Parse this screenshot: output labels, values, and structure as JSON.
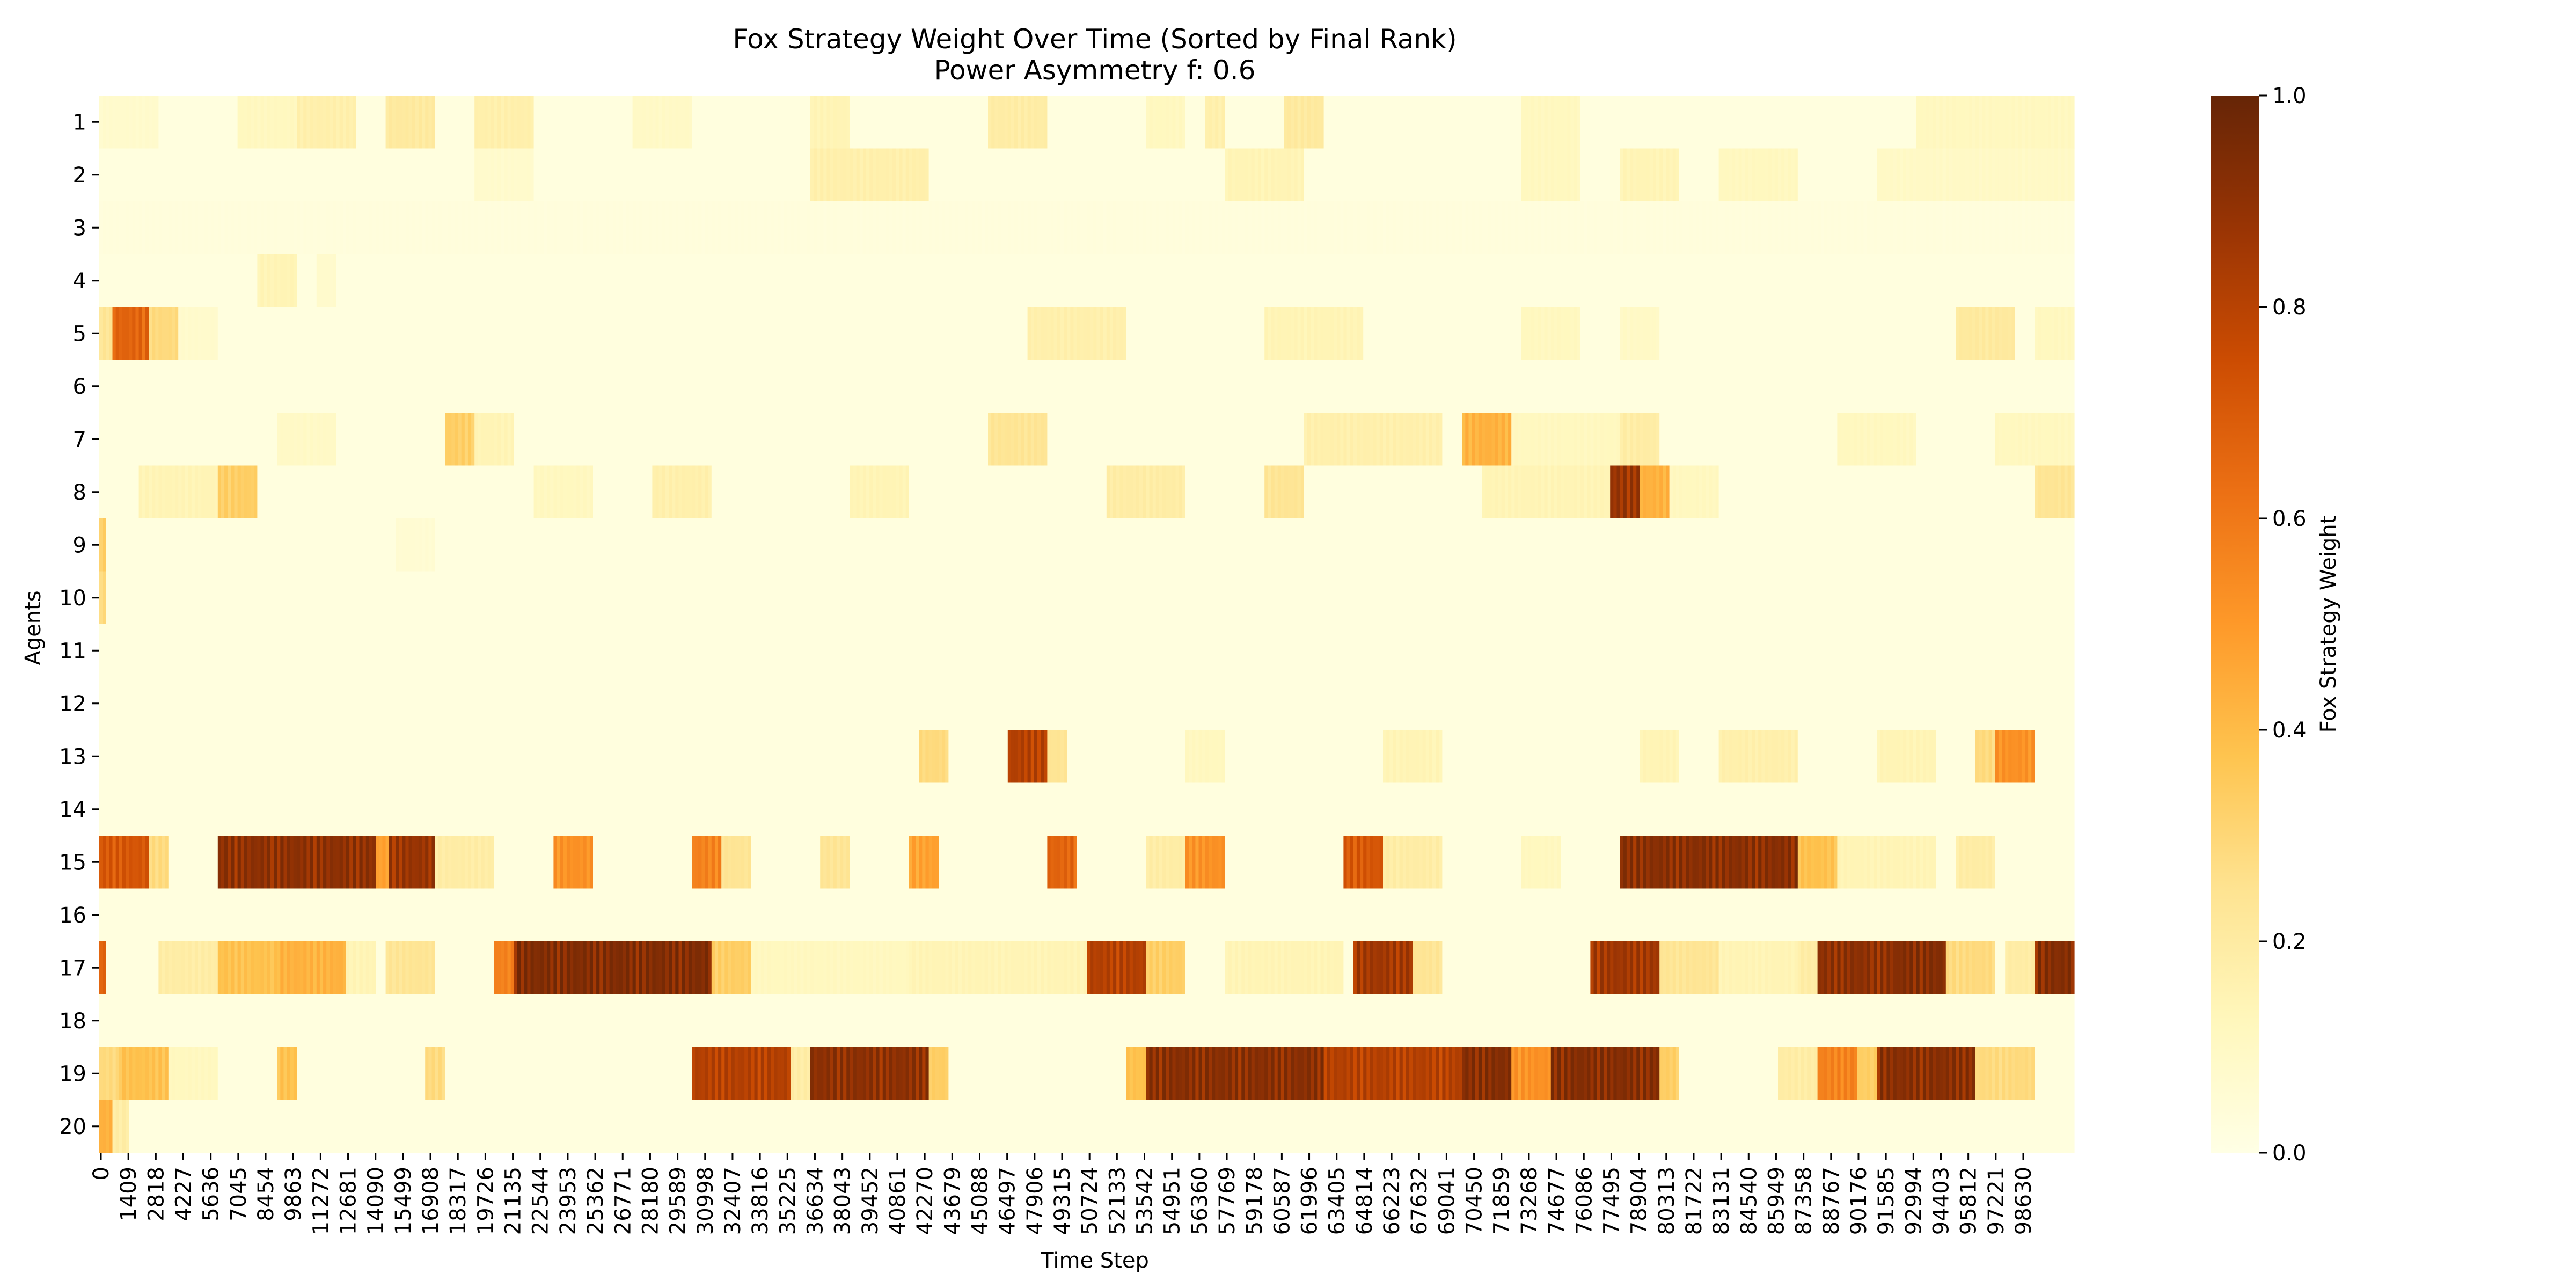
{
  "chart_data": {
    "type": "heatmap",
    "title": "Fox Strategy Weight Over Time (Sorted by Final Rank)",
    "subtitle": "Power Asymmetry f: 0.6",
    "xlabel": "Time Step",
    "ylabel": "Agents",
    "x_range": [
      0,
      100000
    ],
    "x_tick_labels": [
      "0",
      "1409",
      "2818",
      "4227",
      "5636",
      "7045",
      "8454",
      "9863",
      "11272",
      "12681",
      "14090",
      "15499",
      "16908",
      "18317",
      "19726",
      "21135",
      "22544",
      "23953",
      "25362",
      "26771",
      "28180",
      "29589",
      "30998",
      "32407",
      "33816",
      "35225",
      "36634",
      "38043",
      "39452",
      "40861",
      "42270",
      "43679",
      "45088",
      "46497",
      "47906",
      "49315",
      "50724",
      "52133",
      "53542",
      "54951",
      "56360",
      "57769",
      "59178",
      "60587",
      "61996",
      "63405",
      "64814",
      "66223",
      "67632",
      "69041",
      "70450",
      "71859",
      "73268",
      "74677",
      "76086",
      "77495",
      "78904",
      "80313",
      "81722",
      "83131",
      "84540",
      "85949",
      "87358",
      "88767",
      "90176",
      "91585",
      "92994",
      "94403",
      "95812",
      "97221",
      "98630"
    ],
    "agents": [
      "1",
      "2",
      "3",
      "4",
      "5",
      "6",
      "7",
      "8",
      "9",
      "10",
      "11",
      "12",
      "13",
      "14",
      "15",
      "16",
      "17",
      "18",
      "19",
      "20"
    ],
    "colorbar": {
      "label": "Fox Strategy Weight",
      "range": [
        0.0,
        1.0
      ],
      "tick_labels": [
        "0.0",
        "0.2",
        "0.4",
        "0.6",
        "0.8",
        "1.0"
      ],
      "colormap": "YlOrBr",
      "colors": [
        "#ffffe5",
        "#fff7bc",
        "#fee391",
        "#fec44f",
        "#fe9929",
        "#ec7014",
        "#cc4c02",
        "#993404",
        "#662506"
      ]
    },
    "baseline_weight": 0.02,
    "segments": [
      {
        "agent": "1",
        "events": [
          [
            0,
            3000,
            0.08
          ],
          [
            7000,
            11000,
            0.12
          ],
          [
            10000,
            13000,
            0.18
          ],
          [
            14500,
            17000,
            0.22
          ],
          [
            19000,
            22000,
            0.18
          ],
          [
            27000,
            30000,
            0.1
          ],
          [
            36000,
            38000,
            0.15
          ],
          [
            45000,
            48000,
            0.2
          ],
          [
            53000,
            55000,
            0.12
          ],
          [
            56000,
            57000,
            0.18
          ],
          [
            60000,
            62000,
            0.22
          ],
          [
            72000,
            75000,
            0.12
          ],
          [
            92000,
            100000,
            0.12
          ]
        ]
      },
      {
        "agent": "2",
        "events": [
          [
            19000,
            22000,
            0.08
          ],
          [
            36000,
            42000,
            0.18
          ],
          [
            57000,
            61000,
            0.15
          ],
          [
            72000,
            75000,
            0.12
          ],
          [
            77000,
            80000,
            0.15
          ],
          [
            82000,
            86000,
            0.12
          ],
          [
            90000,
            100000,
            0.1
          ]
        ]
      },
      {
        "agent": "3",
        "events": [
          [
            0,
            100000,
            0.03
          ]
        ]
      },
      {
        "agent": "4",
        "events": [
          [
            8000,
            10000,
            0.15
          ],
          [
            11000,
            12000,
            0.08
          ]
        ]
      },
      {
        "agent": "5",
        "events": [
          [
            0,
            600,
            0.25
          ],
          [
            600,
            2500,
            0.7
          ],
          [
            2500,
            4000,
            0.3
          ],
          [
            4000,
            6000,
            0.08
          ],
          [
            47000,
            52000,
            0.18
          ],
          [
            59000,
            64000,
            0.15
          ],
          [
            72000,
            75000,
            0.12
          ],
          [
            77000,
            79000,
            0.1
          ],
          [
            94000,
            97000,
            0.22
          ],
          [
            98000,
            100000,
            0.12
          ]
        ]
      },
      {
        "agent": "6",
        "events": [
          [
            0,
            100000,
            0.01
          ]
        ]
      },
      {
        "agent": "7",
        "events": [
          [
            9000,
            12000,
            0.1
          ],
          [
            17500,
            19000,
            0.35
          ],
          [
            19000,
            21000,
            0.15
          ],
          [
            45000,
            48000,
            0.25
          ],
          [
            61000,
            68000,
            0.18
          ],
          [
            69000,
            71500,
            0.45
          ],
          [
            71500,
            77000,
            0.12
          ],
          [
            77000,
            79000,
            0.2
          ],
          [
            88000,
            92000,
            0.12
          ],
          [
            96000,
            100000,
            0.12
          ]
        ]
      },
      {
        "agent": "8",
        "events": [
          [
            2000,
            7000,
            0.15
          ],
          [
            6000,
            8000,
            0.35
          ],
          [
            22000,
            25000,
            0.12
          ],
          [
            28000,
            31000,
            0.18
          ],
          [
            38000,
            41000,
            0.15
          ],
          [
            51000,
            55000,
            0.2
          ],
          [
            59000,
            61000,
            0.25
          ],
          [
            70000,
            77000,
            0.15
          ],
          [
            76500,
            78000,
            0.92
          ],
          [
            78000,
            79500,
            0.45
          ],
          [
            79500,
            82000,
            0.12
          ],
          [
            98000,
            100000,
            0.25
          ]
        ]
      },
      {
        "agent": "9",
        "events": [
          [
            0,
            300,
            0.35
          ],
          [
            15000,
            17000,
            0.06
          ]
        ]
      },
      {
        "agent": "10",
        "events": [
          [
            0,
            300,
            0.3
          ]
        ]
      },
      {
        "agent": "11",
        "events": [
          [
            0,
            100000,
            0.01
          ]
        ]
      },
      {
        "agent": "12",
        "events": [
          [
            0,
            100000,
            0.01
          ]
        ]
      },
      {
        "agent": "13",
        "events": [
          [
            41500,
            43000,
            0.3
          ],
          [
            46000,
            48000,
            0.85
          ],
          [
            48000,
            49000,
            0.25
          ],
          [
            55000,
            57000,
            0.12
          ],
          [
            65000,
            68000,
            0.15
          ],
          [
            78000,
            80000,
            0.15
          ],
          [
            82000,
            86000,
            0.18
          ],
          [
            90000,
            93000,
            0.15
          ],
          [
            95000,
            96000,
            0.3
          ],
          [
            96000,
            98000,
            0.55
          ]
        ]
      },
      {
        "agent": "14",
        "events": [
          [
            0,
            100000,
            0.01
          ]
        ]
      },
      {
        "agent": "15",
        "events": [
          [
            0,
            2500,
            0.75
          ],
          [
            2500,
            3500,
            0.3
          ],
          [
            6000,
            14000,
            0.95
          ],
          [
            14000,
            14600,
            0.5
          ],
          [
            14600,
            17000,
            0.92
          ],
          [
            17000,
            20000,
            0.2
          ],
          [
            23000,
            25000,
            0.55
          ],
          [
            30000,
            31500,
            0.6
          ],
          [
            31500,
            33000,
            0.25
          ],
          [
            36500,
            38000,
            0.25
          ],
          [
            41000,
            42500,
            0.5
          ],
          [
            48000,
            49500,
            0.7
          ],
          [
            53000,
            55000,
            0.2
          ],
          [
            55000,
            57000,
            0.55
          ],
          [
            63000,
            65000,
            0.75
          ],
          [
            65000,
            68000,
            0.2
          ],
          [
            72000,
            74000,
            0.12
          ],
          [
            77000,
            86000,
            0.96
          ],
          [
            86000,
            88000,
            0.4
          ],
          [
            88000,
            93000,
            0.15
          ],
          [
            94000,
            96000,
            0.2
          ]
        ]
      },
      {
        "agent": "16",
        "events": [
          [
            0,
            100000,
            0.01
          ]
        ]
      },
      {
        "agent": "17",
        "events": [
          [
            0,
            400,
            0.7
          ],
          [
            3000,
            6000,
            0.2
          ],
          [
            6000,
            9000,
            0.4
          ],
          [
            9000,
            12500,
            0.45
          ],
          [
            12500,
            14000,
            0.15
          ],
          [
            14500,
            17000,
            0.25
          ],
          [
            20000,
            21000,
            0.6
          ],
          [
            21000,
            31000,
            0.98
          ],
          [
            31000,
            33000,
            0.35
          ],
          [
            33000,
            41000,
            0.12
          ],
          [
            41000,
            50000,
            0.15
          ],
          [
            50000,
            53000,
            0.85
          ],
          [
            53000,
            55000,
            0.35
          ],
          [
            57000,
            63000,
            0.15
          ],
          [
            63500,
            66500,
            0.9
          ],
          [
            66500,
            68000,
            0.25
          ],
          [
            75500,
            79000,
            0.9
          ],
          [
            79000,
            82000,
            0.25
          ],
          [
            82000,
            86000,
            0.15
          ],
          [
            86000,
            87000,
            0.2
          ],
          [
            87000,
            91000,
            0.95
          ],
          [
            91000,
            93500,
            0.97
          ],
          [
            93500,
            96000,
            0.3
          ],
          [
            96500,
            98000,
            0.2
          ],
          [
            98000,
            100000,
            0.97
          ]
        ]
      },
      {
        "agent": "18",
        "events": [
          [
            0,
            100000,
            0.01
          ]
        ]
      },
      {
        "agent": "19",
        "events": [
          [
            0,
            1000,
            0.3
          ],
          [
            1000,
            3500,
            0.4
          ],
          [
            3500,
            6000,
            0.12
          ],
          [
            9000,
            10000,
            0.4
          ],
          [
            16500,
            17500,
            0.3
          ],
          [
            30000,
            35000,
            0.85
          ],
          [
            35000,
            36000,
            0.2
          ],
          [
            36000,
            42000,
            0.95
          ],
          [
            42000,
            43000,
            0.35
          ],
          [
            52000,
            53000,
            0.4
          ],
          [
            53000,
            62000,
            0.96
          ],
          [
            62000,
            69000,
            0.85
          ],
          [
            69000,
            71500,
            0.97
          ],
          [
            71500,
            73500,
            0.55
          ],
          [
            73500,
            79000,
            0.97
          ],
          [
            79000,
            80000,
            0.35
          ],
          [
            85000,
            87000,
            0.2
          ],
          [
            87000,
            89000,
            0.6
          ],
          [
            89000,
            90000,
            0.35
          ],
          [
            90000,
            95000,
            0.96
          ],
          [
            95000,
            98000,
            0.3
          ]
        ]
      },
      {
        "agent": "20",
        "events": [
          [
            0,
            600,
            0.45
          ],
          [
            600,
            1500,
            0.2
          ]
        ]
      }
    ]
  }
}
